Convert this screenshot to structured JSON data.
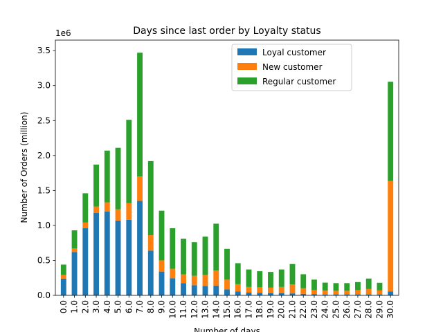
{
  "chart_data": {
    "type": "bar",
    "stacked": true,
    "title": "Days since last order by Loyalty status",
    "xlabel": "Number of days",
    "ylabel": "Number of Orders (million)",
    "y_offset_text": "1e6",
    "ylim": [
      0,
      3650000
    ],
    "yticks": [
      0,
      500000,
      1000000,
      1500000,
      2000000,
      2500000,
      3000000,
      3500000
    ],
    "ytick_labels": [
      "0.0",
      "0.5",
      "1.0",
      "1.5",
      "2.0",
      "2.5",
      "3.0",
      "3.5"
    ],
    "categories": [
      "0.0",
      "1.0",
      "2.0",
      "3.0",
      "4.0",
      "5.0",
      "6.0",
      "7.0",
      "8.0",
      "9.0",
      "10.0",
      "11.0",
      "12.0",
      "13.0",
      "14.0",
      "15.0",
      "16.0",
      "17.0",
      "18.0",
      "19.0",
      "20.0",
      "21.0",
      "22.0",
      "23.0",
      "24.0",
      "25.0",
      "26.0",
      "27.0",
      "28.0",
      "29.0",
      "30.0"
    ],
    "legend_position": "top-right",
    "series": [
      {
        "name": "Loyal customer",
        "color": "#1f77b4",
        "values": [
          240000,
          620000,
          960000,
          1180000,
          1200000,
          1070000,
          1080000,
          1350000,
          640000,
          340000,
          245000,
          175000,
          145000,
          135000,
          140000,
          85000,
          55000,
          40000,
          35000,
          30000,
          30000,
          28000,
          22000,
          15000,
          12000,
          10000,
          10000,
          10000,
          10000,
          10000,
          55000
        ]
      },
      {
        "name": "New customer",
        "color": "#ff7f0e",
        "values": [
          50000,
          50000,
          80000,
          90000,
          130000,
          160000,
          240000,
          350000,
          220000,
          160000,
          135000,
          125000,
          135000,
          155000,
          215000,
          140000,
          105000,
          80000,
          80000,
          80000,
          90000,
          130000,
          80000,
          60000,
          55000,
          55000,
          55000,
          65000,
          80000,
          60000,
          1580000
        ]
      },
      {
        "name": "Regular customer",
        "color": "#2ca02c",
        "values": [
          150000,
          260000,
          420000,
          600000,
          740000,
          880000,
          1190000,
          1770000,
          1060000,
          710000,
          580000,
          510000,
          480000,
          550000,
          670000,
          440000,
          300000,
          250000,
          230000,
          225000,
          250000,
          290000,
          200000,
          150000,
          115000,
          110000,
          110000,
          115000,
          150000,
          110000,
          1420000
        ]
      }
    ]
  }
}
